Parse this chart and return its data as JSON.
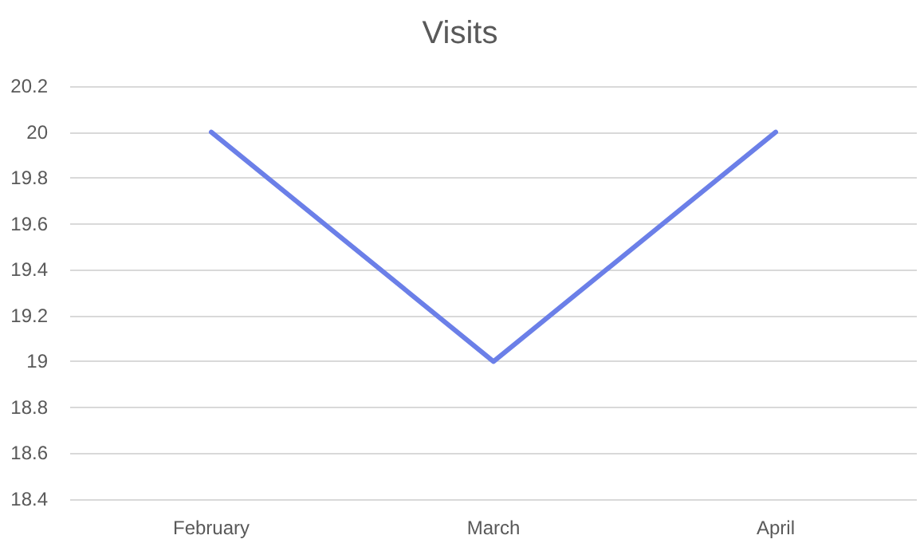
{
  "chart_data": {
    "type": "line",
    "title": "Visits",
    "categories": [
      "February",
      "March",
      "April"
    ],
    "series": [
      {
        "color": "#6b7fe8",
        "values": [
          20,
          19,
          20
        ]
      }
    ],
    "ylim": [
      18.4,
      20.2
    ],
    "yticks": [
      18.4,
      18.6,
      18.8,
      19,
      19.2,
      19.4,
      19.6,
      19.8,
      20,
      20.2
    ],
    "grid": "y",
    "marker": "none"
  }
}
